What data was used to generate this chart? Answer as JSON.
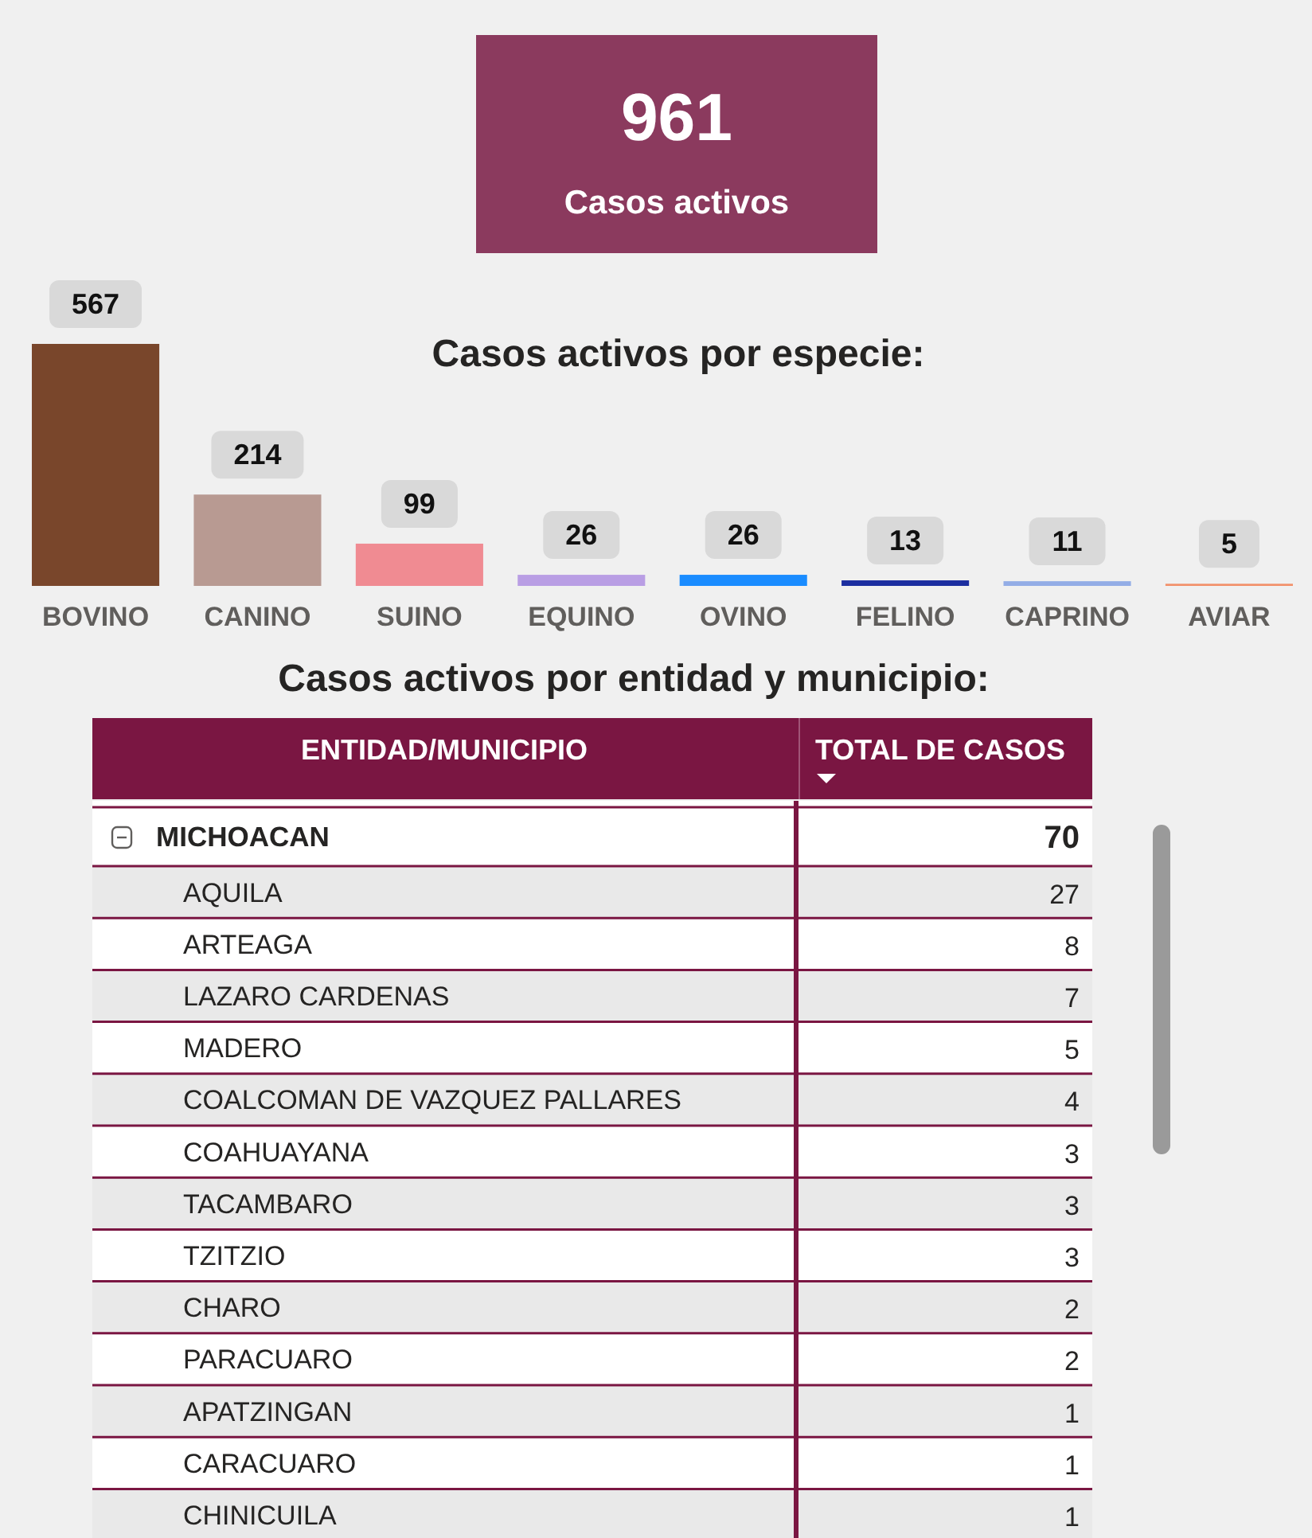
{
  "chart_data": [
    {
      "type": "other",
      "categories": [
        "Casos activos"
      ],
      "values": [
        961
      ],
      "color": "#8b3a5e",
      "data_labels": true
    },
    {
      "type": "bar",
      "title": "Casos activos por especie:",
      "categories": [
        "BOVINO",
        "CANINO",
        "SUINO",
        "EQUINO",
        "OVINO",
        "FELINO",
        "CAPRINO",
        "AVIAR"
      ],
      "values": [
        567,
        214,
        99,
        26,
        26,
        13,
        11,
        5
      ],
      "colors": [
        "#79462b",
        "#b89a92",
        "#f08b92",
        "#b99ee4",
        "#1a8cff",
        "#1c2ea0",
        "#93ade6",
        "#f2906a"
      ],
      "data_labels": true
    },
    {
      "type": "other",
      "title": "Casos activos por entidad y municipio:",
      "xlabel": "ENTIDAD/MUNICIPIO",
      "ylabel": "TOTAL DE CASOS",
      "categories": [
        "MICHOACAN",
        "AQUILA",
        "ARTEAGA",
        "LAZARO CARDENAS",
        "MADERO",
        "COALCOMAN DE VAZQUEZ PALLARES",
        "COAHUAYANA",
        "TACAMBARO",
        "TZITZIO",
        "CHARO",
        "PARACUARO",
        "APATZINGAN",
        "CARACUARO",
        "CHINICUILA"
      ],
      "values": [
        70,
        27,
        8,
        7,
        5,
        4,
        3,
        3,
        3,
        2,
        2,
        1,
        1,
        1
      ],
      "data_labels": true
    }
  ]
}
